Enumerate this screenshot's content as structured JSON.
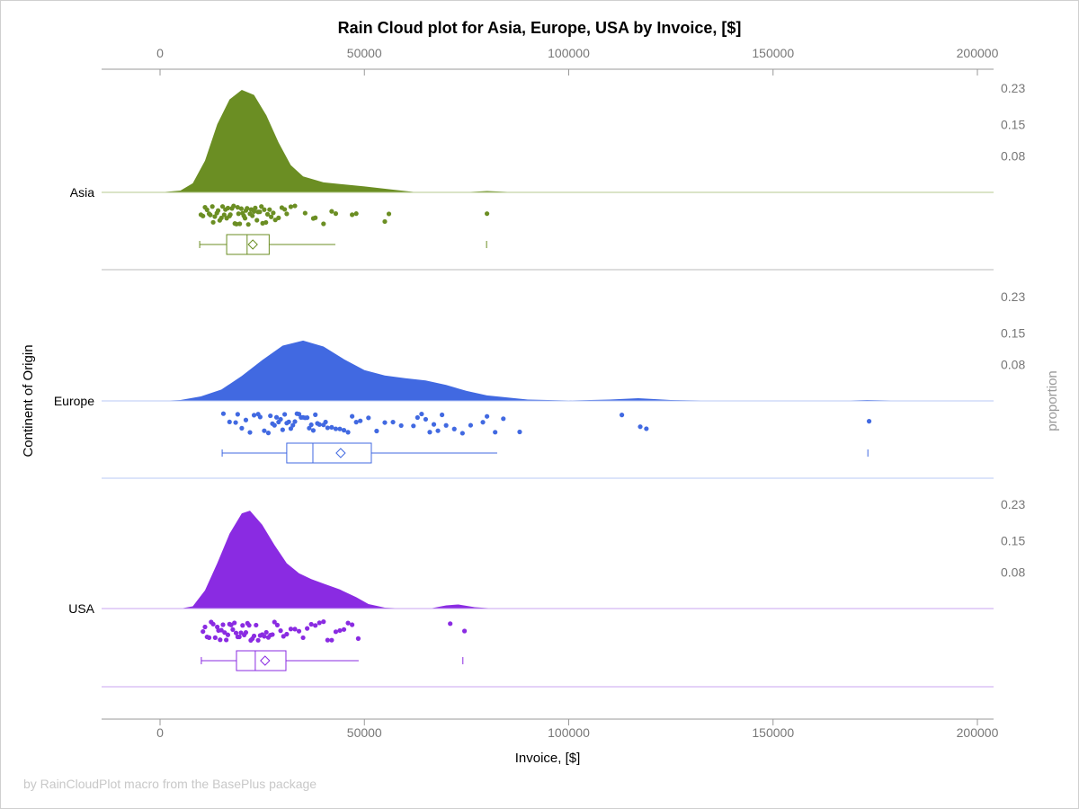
{
  "chart_data": {
    "type": "raincloud",
    "title": "Rain Cloud plot for Asia, Europe, USA by Invoice, [$]",
    "xlabel": "Invoice, [$]",
    "ylabel": "Continent of Origin",
    "y2label": "proportion",
    "footer": "by RainCloudPlot macro from the BasePlus package",
    "xlim": [
      -14000,
      204000
    ],
    "xticks": [
      0,
      50000,
      100000,
      150000,
      200000
    ],
    "xtick_labels": [
      "0",
      "50000",
      "100000",
      "150000",
      "200000"
    ],
    "density_ticks": [
      0.08,
      0.15,
      0.23
    ],
    "density_tick_labels": [
      "0.08",
      "0.15",
      "0.23"
    ],
    "density_max": 0.23,
    "grid": false,
    "groups": [
      {
        "name": "Asia",
        "color": "#6b8e23",
        "line_color": "#b5c98f",
        "density": [
          [
            0,
            0
          ],
          [
            5000,
            0.004
          ],
          [
            8000,
            0.02
          ],
          [
            11000,
            0.07
          ],
          [
            14000,
            0.15
          ],
          [
            17000,
            0.205
          ],
          [
            20000,
            0.226
          ],
          [
            23000,
            0.215
          ],
          [
            26000,
            0.17
          ],
          [
            29000,
            0.11
          ],
          [
            32000,
            0.06
          ],
          [
            35000,
            0.035
          ],
          [
            40000,
            0.022
          ],
          [
            50000,
            0.013
          ],
          [
            57000,
            0.006
          ],
          [
            62000,
            0.001
          ],
          [
            70000,
            0
          ],
          [
            76000,
            0.001
          ],
          [
            80000,
            0.003
          ],
          [
            85000,
            0.001
          ],
          [
            90000,
            0
          ]
        ],
        "points": [
          10000,
          10500,
          11000,
          11500,
          12000,
          12300,
          12800,
          13000,
          13400,
          13900,
          14200,
          14600,
          15000,
          15300,
          15700,
          16000,
          16300,
          16600,
          17000,
          17200,
          17600,
          18000,
          18300,
          18700,
          19000,
          19200,
          19500,
          19900,
          20200,
          20500,
          20800,
          21000,
          21300,
          21600,
          22000,
          22300,
          22600,
          23000,
          23300,
          23700,
          24000,
          24400,
          24800,
          25100,
          25500,
          25900,
          26300,
          26800,
          27200,
          27700,
          28200,
          29000,
          29800,
          30500,
          31000,
          32000,
          33000,
          35500,
          37500,
          38000,
          40000,
          42000,
          43000,
          47000,
          48000,
          55000,
          56000,
          80000
        ],
        "box": {
          "min": 9700,
          "q1": 16300,
          "median": 21300,
          "mean": 22700,
          "q3": 26700,
          "whisker_high": 42900,
          "max": 79900
        }
      },
      {
        "name": "Europe",
        "color": "#4169e1",
        "line_color": "#b8c8f5",
        "density": [
          [
            0,
            0
          ],
          [
            5000,
            0.002
          ],
          [
            10000,
            0.01
          ],
          [
            15000,
            0.025
          ],
          [
            20000,
            0.055
          ],
          [
            25000,
            0.09
          ],
          [
            30000,
            0.122
          ],
          [
            35000,
            0.133
          ],
          [
            40000,
            0.12
          ],
          [
            45000,
            0.092
          ],
          [
            50000,
            0.068
          ],
          [
            55000,
            0.056
          ],
          [
            60000,
            0.05
          ],
          [
            65000,
            0.045
          ],
          [
            70000,
            0.035
          ],
          [
            75000,
            0.022
          ],
          [
            80000,
            0.012
          ],
          [
            90000,
            0.003
          ],
          [
            100000,
            0.001
          ],
          [
            110000,
            0.003
          ],
          [
            117000,
            0.006
          ],
          [
            125000,
            0.002
          ],
          [
            140000,
            0
          ],
          [
            165000,
            0
          ],
          [
            173000,
            0.002
          ],
          [
            185000,
            0
          ],
          [
            200000,
            0
          ]
        ],
        "points": [
          15500,
          17000,
          18500,
          19000,
          20000,
          21000,
          22000,
          23000,
          24000,
          24500,
          25500,
          26500,
          27000,
          27500,
          28000,
          28500,
          29000,
          29500,
          30000,
          30500,
          31000,
          31500,
          32000,
          32500,
          33000,
          33500,
          34000,
          34500,
          35000,
          35500,
          36000,
          36500,
          37000,
          37500,
          38000,
          38500,
          39000,
          40000,
          40500,
          41000,
          42000,
          43000,
          44000,
          45000,
          46000,
          47000,
          48000,
          49000,
          51000,
          53000,
          55000,
          57000,
          59000,
          62000,
          63000,
          64000,
          65000,
          66000,
          67000,
          68000,
          69000,
          70000,
          72000,
          74000,
          76000,
          79000,
          80000,
          82000,
          84000,
          88000,
          113000,
          117500,
          119000,
          173500
        ],
        "box": {
          "min": 15200,
          "q1": 31000,
          "median": 37400,
          "mean": 44200,
          "q3": 51700,
          "whisker_high": 82500,
          "max": 173200
        }
      },
      {
        "name": "USA",
        "color": "#8a2be2",
        "line_color": "#c9a6f0",
        "density": [
          [
            5000,
            0
          ],
          [
            8000,
            0.005
          ],
          [
            11000,
            0.04
          ],
          [
            14000,
            0.1
          ],
          [
            17000,
            0.165
          ],
          [
            20000,
            0.21
          ],
          [
            22000,
            0.216
          ],
          [
            25000,
            0.185
          ],
          [
            28000,
            0.14
          ],
          [
            31000,
            0.1
          ],
          [
            34000,
            0.078
          ],
          [
            37000,
            0.065
          ],
          [
            40000,
            0.055
          ],
          [
            44000,
            0.042
          ],
          [
            48000,
            0.025
          ],
          [
            51000,
            0.01
          ],
          [
            55000,
            0.002
          ],
          [
            60000,
            0
          ],
          [
            66000,
            0
          ],
          [
            70000,
            0.007
          ],
          [
            73000,
            0.009
          ],
          [
            77000,
            0.003
          ],
          [
            82000,
            0
          ],
          [
            200000,
            0
          ]
        ],
        "points": [
          10500,
          11000,
          11500,
          12000,
          12500,
          13000,
          13500,
          14000,
          14300,
          14700,
          15000,
          15400,
          15800,
          16200,
          16600,
          17000,
          17400,
          17800,
          18200,
          18600,
          19000,
          19400,
          19800,
          20200,
          20600,
          21000,
          21400,
          21800,
          22200,
          22600,
          23000,
          23500,
          24000,
          24500,
          25000,
          25500,
          26000,
          26500,
          27000,
          27500,
          28000,
          28700,
          29500,
          30200,
          31000,
          32000,
          33000,
          34000,
          35000,
          36000,
          37000,
          38000,
          39000,
          40000,
          41000,
          42000,
          43000,
          44000,
          45000,
          46000,
          47000,
          48500,
          71000,
          74500
        ],
        "box": {
          "min": 10100,
          "q1": 18700,
          "median": 23300,
          "mean": 25700,
          "q3": 30800,
          "whisker_high": 48600,
          "max": 74100
        }
      }
    ]
  }
}
